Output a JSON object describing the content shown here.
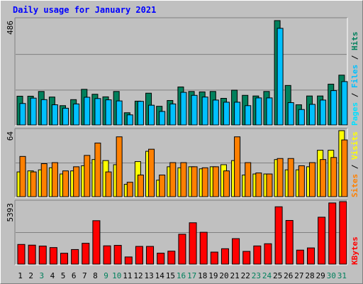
{
  "title": "Daily usage for January 2021",
  "colors": {
    "background": "#c0c0c0",
    "title": "#0000ff",
    "hits": "#00805c",
    "files": "#00c0ff",
    "pages": "#00e0ff",
    "visits": "#ffff00",
    "sites": "#ff8000",
    "kbytes": "#ff0000",
    "weekend_day": "#00805c",
    "weekday": "#000000"
  },
  "chart_data": [
    {
      "type": "bar",
      "name": "hits-files-pages",
      "y_max_label": "486",
      "legend": [
        "Pages",
        "Files",
        "Hits"
      ],
      "legend_separator": " / ",
      "categories": [
        "1",
        "2",
        "3",
        "4",
        "5",
        "6",
        "7",
        "8",
        "9",
        "10",
        "11",
        "12",
        "13",
        "14",
        "15",
        "16",
        "17",
        "18",
        "19",
        "20",
        "21",
        "22",
        "23",
        "24",
        "25",
        "26",
        "27",
        "28",
        "29",
        "30",
        "31"
      ],
      "series": [
        {
          "name": "Hits",
          "values": [
            134,
            134,
            156,
            130,
            90,
            118,
            166,
            143,
            131,
            156,
            57,
            111,
            148,
            87,
            114,
            177,
            156,
            154,
            156,
            124,
            162,
            138,
            135,
            156,
            486,
            184,
            94,
            135,
            135,
            190,
            232
          ]
        },
        {
          "name": "Files",
          "values": [
            100,
            125,
            118,
            94,
            78,
            98,
            129,
            123,
            117,
            112,
            47,
            110,
            92,
            63,
            98,
            152,
            138,
            130,
            116,
            106,
            106,
            90,
            126,
            126,
            450,
            104,
            72,
            96,
            116,
            160,
            202
          ]
        }
      ]
    },
    {
      "type": "bar",
      "name": "visits-sites",
      "y_max_label": "64",
      "legend": [
        "Sites",
        "Visits"
      ],
      "legend_separator": " / ",
      "categories": [
        "1",
        "2",
        "3",
        "4",
        "5",
        "6",
        "7",
        "8",
        "9",
        "10",
        "11",
        "12",
        "13",
        "14",
        "15",
        "16",
        "17",
        "18",
        "19",
        "20",
        "21",
        "22",
        "23",
        "24",
        "25",
        "26",
        "27",
        "28",
        "29",
        "30",
        "31"
      ],
      "series": [
        {
          "name": "Visits",
          "values": [
            24,
            25,
            26,
            28,
            22,
            25,
            30,
            36,
            35,
            31,
            12,
            34,
            44,
            16,
            29,
            28,
            29,
            27,
            29,
            31,
            35,
            21,
            22,
            22,
            36,
            26,
            26,
            29,
            45,
            45,
            64
          ]
        },
        {
          "name": "Sites",
          "values": [
            39,
            24,
            32,
            33,
            25,
            29,
            40,
            52,
            24,
            58,
            14,
            21,
            46,
            21,
            33,
            33,
            29,
            28,
            29,
            25,
            58,
            33,
            23,
            22,
            37,
            37,
            30,
            33,
            36,
            38,
            55
          ]
        }
      ]
    },
    {
      "type": "bar",
      "name": "kbytes",
      "y_max_label": "5393",
      "legend": [
        "KBytes"
      ],
      "categories": [
        "1",
        "2",
        "3",
        "4",
        "5",
        "6",
        "7",
        "8",
        "9",
        "10",
        "11",
        "12",
        "13",
        "14",
        "15",
        "16",
        "17",
        "18",
        "19",
        "20",
        "21",
        "22",
        "23",
        "24",
        "25",
        "26",
        "27",
        "28",
        "29",
        "30",
        "31"
      ],
      "series": [
        {
          "name": "KBytes",
          "values": [
            1700,
            1640,
            1560,
            1430,
            940,
            1260,
            1800,
            3750,
            1580,
            1620,
            620,
            1530,
            1530,
            950,
            1120,
            2580,
            3570,
            2750,
            1040,
            1330,
            2200,
            1100,
            1570,
            1760,
            4950,
            3770,
            1210,
            1400,
            4050,
            5280,
            5393
          ]
        }
      ]
    }
  ],
  "weekend_days": [
    "3",
    "9",
    "10",
    "16",
    "17",
    "23",
    "24",
    "30",
    "31"
  ]
}
